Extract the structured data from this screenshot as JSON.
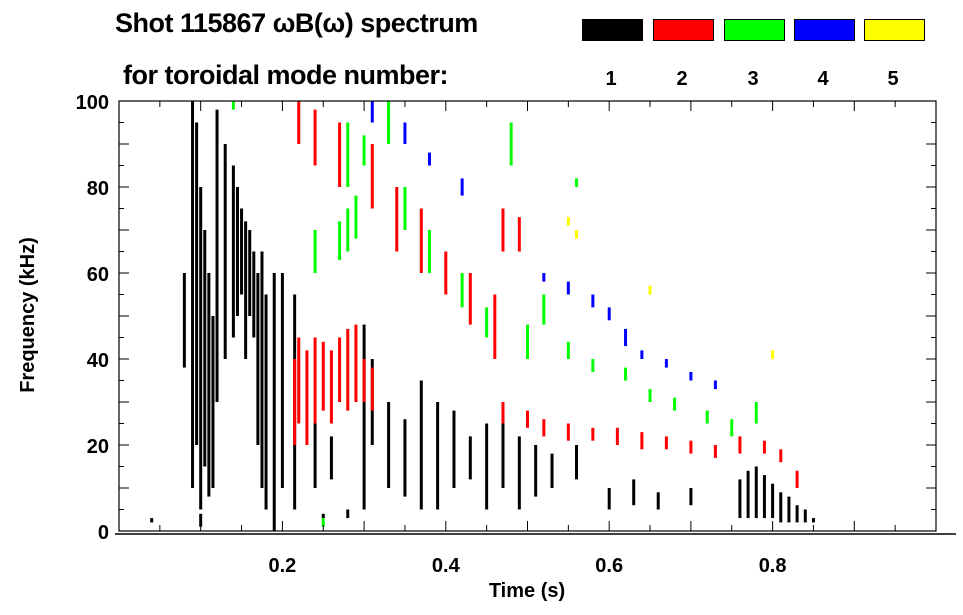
{
  "chart_data": {
    "type": "heatmap",
    "title": "Shot 115867 ωB(ω) spectrum",
    "subtitle": "for toroidal mode number:",
    "xlabel": "Time (s)",
    "ylabel": "Frequency (kHz)",
    "xlim": [
      0,
      1.0
    ],
    "ylim": [
      0,
      100
    ],
    "xticks": [
      "0.2",
      "0.4",
      "0.6",
      "0.8"
    ],
    "xtick_values": [
      0.2,
      0.4,
      0.6,
      0.8
    ],
    "yticks": [
      "0",
      "20",
      "40",
      "60",
      "80",
      "100"
    ],
    "ytick_values": [
      0,
      20,
      40,
      60,
      80,
      100
    ],
    "legend": [
      {
        "label": "1",
        "color": "#000000"
      },
      {
        "label": "2",
        "color": "#ff0000"
      },
      {
        "label": "3",
        "color": "#00ff00"
      },
      {
        "label": "4",
        "color": "#0000ff"
      },
      {
        "label": "5",
        "color": "#ffff00"
      }
    ],
    "series_note": "streaks as [time_s, f_low_kHz, f_high_kHz]",
    "series": [
      {
        "name": "1",
        "color": "#000000",
        "streaks": [
          [
            0.08,
            38,
            60
          ],
          [
            0.09,
            10,
            100
          ],
          [
            0.095,
            20,
            95
          ],
          [
            0.1,
            5,
            80
          ],
          [
            0.105,
            15,
            70
          ],
          [
            0.11,
            8,
            60
          ],
          [
            0.115,
            10,
            50
          ],
          [
            0.12,
            30,
            98
          ],
          [
            0.13,
            40,
            90
          ],
          [
            0.14,
            45,
            85
          ],
          [
            0.145,
            50,
            80
          ],
          [
            0.15,
            55,
            75
          ],
          [
            0.155,
            40,
            72
          ],
          [
            0.16,
            50,
            70
          ],
          [
            0.165,
            45,
            65
          ],
          [
            0.17,
            20,
            60
          ],
          [
            0.175,
            10,
            65
          ],
          [
            0.18,
            5,
            55
          ],
          [
            0.19,
            0,
            60
          ],
          [
            0.2,
            10,
            60
          ],
          [
            0.215,
            5,
            55
          ],
          [
            0.24,
            10,
            25
          ],
          [
            0.26,
            12,
            22
          ],
          [
            0.3,
            5,
            48
          ],
          [
            0.31,
            20,
            40
          ],
          [
            0.33,
            10,
            30
          ],
          [
            0.35,
            8,
            26
          ],
          [
            0.37,
            5,
            35
          ],
          [
            0.39,
            5,
            30
          ],
          [
            0.41,
            10,
            28
          ],
          [
            0.43,
            12,
            22
          ],
          [
            0.45,
            5,
            25
          ],
          [
            0.47,
            10,
            30
          ],
          [
            0.49,
            5,
            22
          ],
          [
            0.51,
            8,
            20
          ],
          [
            0.53,
            10,
            18
          ],
          [
            0.56,
            12,
            20
          ],
          [
            0.6,
            5,
            10
          ],
          [
            0.63,
            6,
            12
          ],
          [
            0.66,
            5,
            9
          ],
          [
            0.7,
            6,
            10
          ],
          [
            0.76,
            3,
            12
          ],
          [
            0.77,
            3,
            14
          ],
          [
            0.78,
            3,
            15
          ],
          [
            0.79,
            3,
            13
          ],
          [
            0.8,
            3,
            11
          ],
          [
            0.81,
            2,
            9
          ],
          [
            0.82,
            2,
            8
          ],
          [
            0.83,
            2,
            6
          ],
          [
            0.84,
            2,
            5
          ],
          [
            0.85,
            2,
            3
          ],
          [
            0.04,
            2,
            3
          ],
          [
            0.1,
            1,
            4
          ],
          [
            0.25,
            3,
            4
          ],
          [
            0.28,
            3,
            5
          ]
        ]
      },
      {
        "name": "2",
        "color": "#ff0000",
        "streaks": [
          [
            0.215,
            20,
            40
          ],
          [
            0.22,
            25,
            45
          ],
          [
            0.23,
            20,
            42
          ],
          [
            0.24,
            25,
            45
          ],
          [
            0.25,
            28,
            44
          ],
          [
            0.26,
            25,
            42
          ],
          [
            0.27,
            30,
            45
          ],
          [
            0.28,
            28,
            47
          ],
          [
            0.29,
            30,
            48
          ],
          [
            0.3,
            30,
            40
          ],
          [
            0.31,
            28,
            38
          ],
          [
            0.22,
            90,
            100
          ],
          [
            0.24,
            85,
            98
          ],
          [
            0.27,
            80,
            95
          ],
          [
            0.31,
            75,
            90
          ],
          [
            0.34,
            65,
            80
          ],
          [
            0.37,
            60,
            75
          ],
          [
            0.4,
            55,
            65
          ],
          [
            0.43,
            48,
            60
          ],
          [
            0.47,
            65,
            75
          ],
          [
            0.49,
            65,
            73
          ],
          [
            0.46,
            40,
            55
          ],
          [
            0.47,
            25,
            30
          ],
          [
            0.5,
            24,
            28
          ],
          [
            0.52,
            22,
            26
          ],
          [
            0.55,
            21,
            25
          ],
          [
            0.58,
            21,
            24
          ],
          [
            0.61,
            20,
            24
          ],
          [
            0.64,
            19,
            23
          ],
          [
            0.67,
            19,
            22
          ],
          [
            0.7,
            18,
            21
          ],
          [
            0.73,
            17,
            20
          ],
          [
            0.76,
            18,
            22
          ],
          [
            0.79,
            18,
            21
          ],
          [
            0.81,
            16,
            19
          ],
          [
            0.83,
            10,
            14
          ]
        ]
      },
      {
        "name": "3",
        "color": "#00ff00",
        "streaks": [
          [
            0.14,
            98,
            100
          ],
          [
            0.24,
            60,
            70
          ],
          [
            0.27,
            63,
            72
          ],
          [
            0.28,
            65,
            75
          ],
          [
            0.29,
            68,
            78
          ],
          [
            0.28,
            80,
            95
          ],
          [
            0.3,
            85,
            92
          ],
          [
            0.25,
            1,
            3
          ],
          [
            0.33,
            90,
            100
          ],
          [
            0.35,
            70,
            80
          ],
          [
            0.38,
            60,
            70
          ],
          [
            0.42,
            52,
            60
          ],
          [
            0.45,
            45,
            52
          ],
          [
            0.48,
            85,
            95
          ],
          [
            0.5,
            40,
            48
          ],
          [
            0.52,
            48,
            55
          ],
          [
            0.55,
            40,
            44
          ],
          [
            0.58,
            37,
            40
          ],
          [
            0.62,
            35,
            38
          ],
          [
            0.65,
            30,
            33
          ],
          [
            0.68,
            28,
            31
          ],
          [
            0.72,
            25,
            28
          ],
          [
            0.75,
            22,
            26
          ],
          [
            0.78,
            25,
            30
          ],
          [
            0.56,
            80,
            82
          ]
        ]
      },
      {
        "name": "4",
        "color": "#0000ff",
        "streaks": [
          [
            0.31,
            95,
            100
          ],
          [
            0.35,
            90,
            95
          ],
          [
            0.38,
            85,
            88
          ],
          [
            0.42,
            78,
            82
          ],
          [
            0.52,
            58,
            60
          ],
          [
            0.55,
            55,
            58
          ],
          [
            0.58,
            52,
            55
          ],
          [
            0.6,
            49,
            52
          ],
          [
            0.62,
            43,
            47
          ],
          [
            0.64,
            40,
            42
          ],
          [
            0.67,
            38,
            40
          ],
          [
            0.7,
            35,
            37
          ],
          [
            0.73,
            33,
            35
          ]
        ]
      },
      {
        "name": "5",
        "color": "#ffff00",
        "streaks": [
          [
            0.55,
            71,
            73
          ],
          [
            0.56,
            68,
            70
          ],
          [
            0.65,
            55,
            57
          ],
          [
            0.8,
            40,
            42
          ]
        ]
      }
    ]
  }
}
